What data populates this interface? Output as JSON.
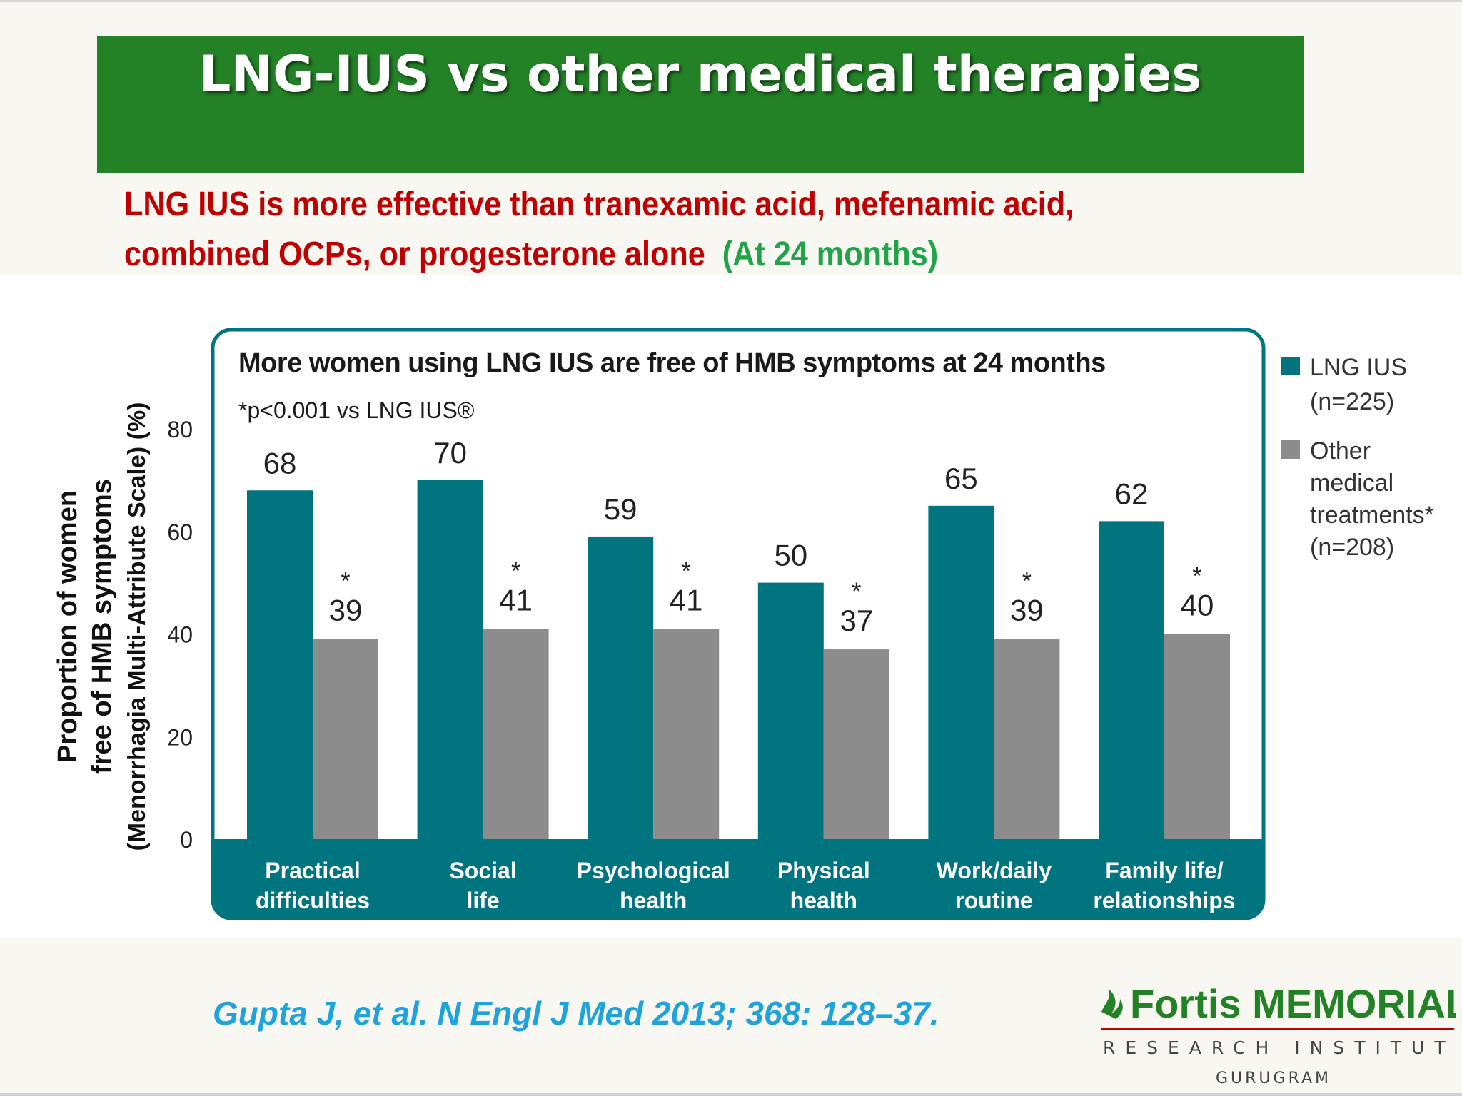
{
  "slide": {
    "title": "LNG-IUS vs other medical therapies",
    "subtitle_line1": "LNG IUS is more effective than tranexamic acid, mefenamic acid,",
    "subtitle_line2": "combined OCPs, or progesterone alone",
    "subtitle_note": "(At 24 months)",
    "citation": "Gupta J, et al. N Engl J Med 2013; 368: 128–37."
  },
  "logo": {
    "name": "Fortis MEMORIAL",
    "line2": "RESEARCH INSTITUTE",
    "line3": "GURUGRAM"
  },
  "chart_data": {
    "type": "bar",
    "title": "More women using LNG IUS are free of HMB symptoms at 24 months",
    "footnote": "*p<0.001 vs LNG IUS®",
    "ylabel_lines": [
      "Proportion of women",
      "free of HMB symptoms",
      "(Menorrhagia Multi-Attribute Scale) (%)"
    ],
    "yticks": [
      0,
      20,
      40,
      60,
      80
    ],
    "ylim": [
      0,
      80
    ],
    "categories": [
      [
        "Practical",
        "difficulties"
      ],
      [
        "Social",
        "life"
      ],
      [
        "Psychological",
        "health"
      ],
      [
        "Physical",
        "health"
      ],
      [
        "Work/daily",
        "routine"
      ],
      [
        "Family  life/",
        "relationships"
      ]
    ],
    "series": [
      {
        "name": "LNG IUS (n=225)",
        "legend_lines": [
          "LNG IUS",
          "(n=225)"
        ],
        "color": "#00747f",
        "values": [
          68,
          70,
          59,
          50,
          65,
          62
        ]
      },
      {
        "name": "Other medical treatments* (n=208)",
        "legend_lines": [
          "Other",
          "medical",
          "treatments*",
          "(n=208)"
        ],
        "color": "#8c8c8c",
        "values": [
          39,
          41,
          41,
          37,
          39,
          40
        ],
        "marker": "*"
      }
    ],
    "colors": {
      "frame": "#00747f",
      "axis_band": "#00747f",
      "category_text": "#ffffff"
    }
  }
}
